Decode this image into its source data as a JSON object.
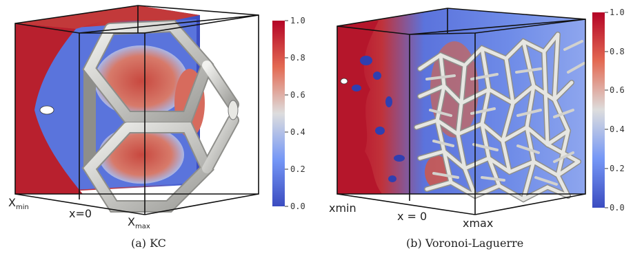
{
  "colors": {
    "low": "#3b4cc0",
    "mid": "#dddddd",
    "high": "#b40426",
    "strut": "#d8d8d4",
    "frame": "#111111"
  },
  "colorbar": {
    "ticks": [
      "1.0",
      "0.8",
      "0.6",
      "0.4",
      "0.2",
      "0.0"
    ]
  },
  "panels": [
    {
      "caption": "(a) KC",
      "labels": {
        "xmin": "X",
        "xmin_sub": "min",
        "x0": "x=0",
        "xmax": "X",
        "xmax_sub": "max"
      }
    },
    {
      "caption": "(b) Voronoi-Laguerre",
      "labels": {
        "xmin": "xmin",
        "x0": "x = 0",
        "xmax": "xmax"
      }
    }
  ]
}
